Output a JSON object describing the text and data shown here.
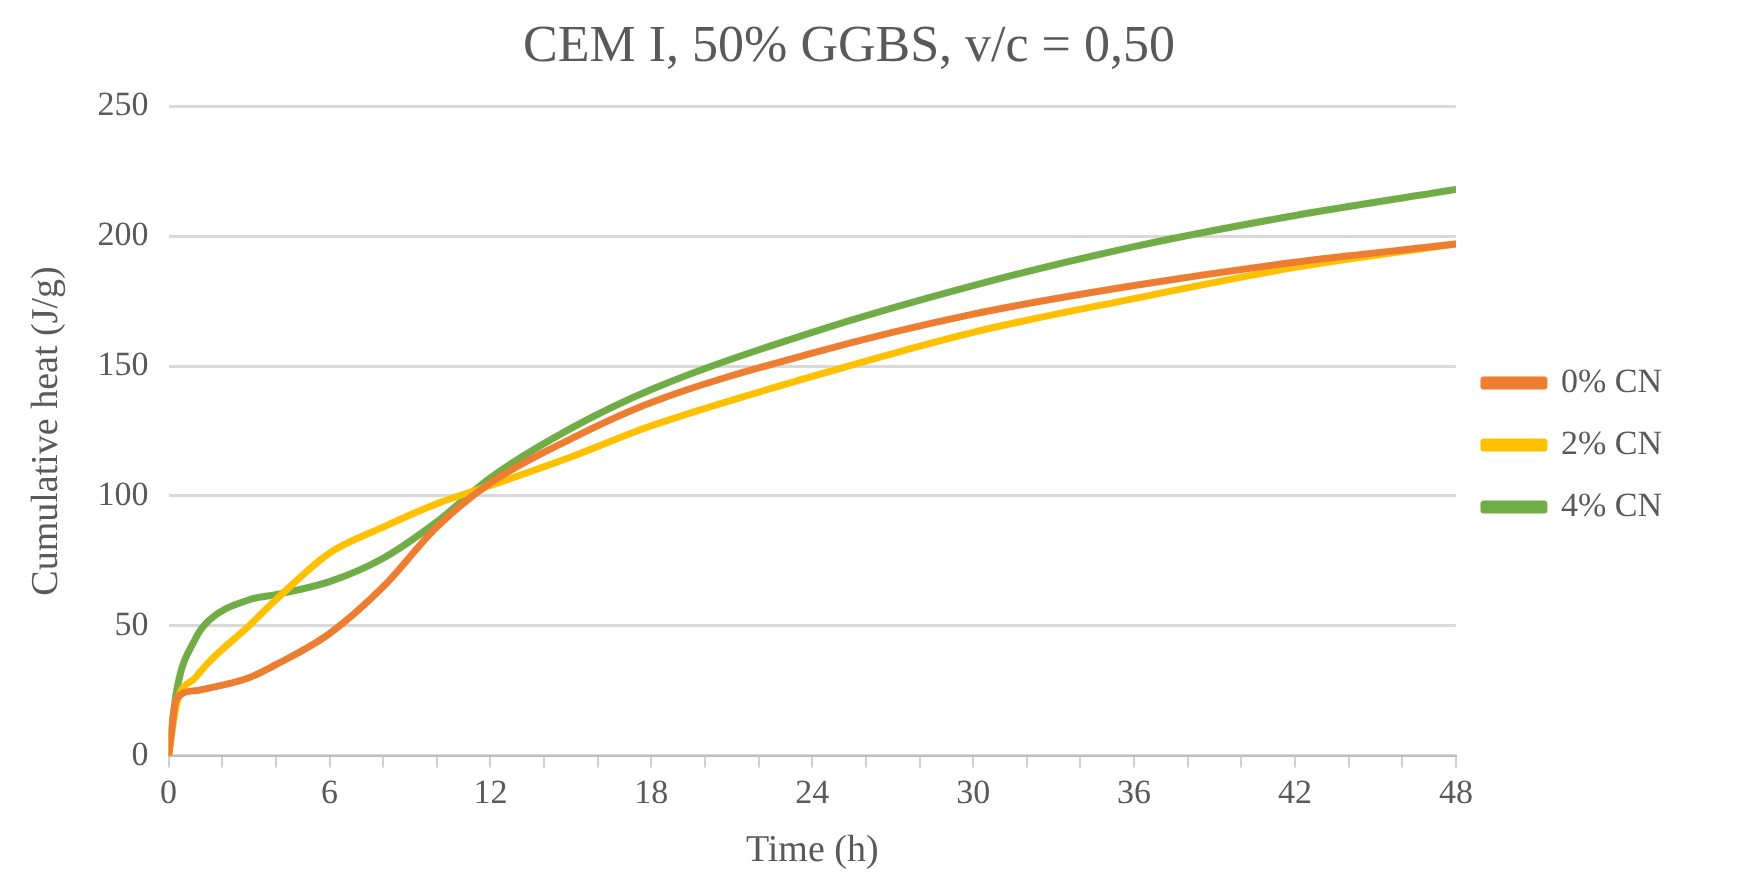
{
  "chart_data": {
    "type": "line",
    "title": "CEM I, 50% GGBS, v/c = 0,50",
    "xlabel": "Time (h)",
    "ylabel": "Cumulative heat (J/g)",
    "xlim": [
      0,
      48
    ],
    "xticks": [
      0,
      {
        "value": 2,
        "label": null
      },
      {
        "value": 4,
        "label": null
      },
      6,
      {
        "value": 8,
        "label": null
      },
      {
        "value": 10,
        "label": null
      },
      12,
      {
        "value": 14,
        "label": null
      },
      {
        "value": 16,
        "label": null
      },
      18,
      {
        "value": 20,
        "label": null
      },
      {
        "value": 22,
        "label": null
      },
      24,
      {
        "value": 26,
        "label": null
      },
      {
        "value": 28,
        "label": null
      },
      30,
      {
        "value": 32,
        "label": null
      },
      {
        "value": 34,
        "label": null
      },
      36,
      {
        "value": 38,
        "label": null
      },
      {
        "value": 40,
        "label": null
      },
      42,
      {
        "value": 44,
        "label": null
      },
      {
        "value": 46,
        "label": null
      },
      48
    ],
    "ylim": [
      0,
      250
    ],
    "yticks": [
      0,
      50,
      100,
      150,
      200,
      250
    ],
    "grid": "y",
    "legend": "right",
    "marker": "none",
    "line_style": "solid",
    "x": [
      0,
      0.3,
      1,
      1.5,
      3,
      4,
      6,
      8,
      10,
      12,
      15,
      18,
      24,
      30,
      36,
      42,
      48
    ],
    "series": [
      {
        "name": "0% CN",
        "color": "#ed7d31",
        "values": [
          0,
          22,
          25,
          26,
          30,
          35,
          47,
          65,
          88,
          105,
          122,
          136,
          155,
          170,
          181,
          190,
          197
        ]
      },
      {
        "name": "2% CN",
        "color": "#ffc000",
        "values": [
          0,
          20,
          30,
          36,
          50,
          60,
          78,
          88,
          97,
          104,
          115,
          127,
          146,
          163,
          176,
          188,
          197
        ]
      },
      {
        "name": "4% CN",
        "color": "#70ad47",
        "values": [
          0,
          25,
          45,
          52,
          60,
          62,
          67,
          76,
          90,
          107,
          126,
          141,
          163,
          181,
          196,
          208,
          218
        ]
      }
    ]
  }
}
